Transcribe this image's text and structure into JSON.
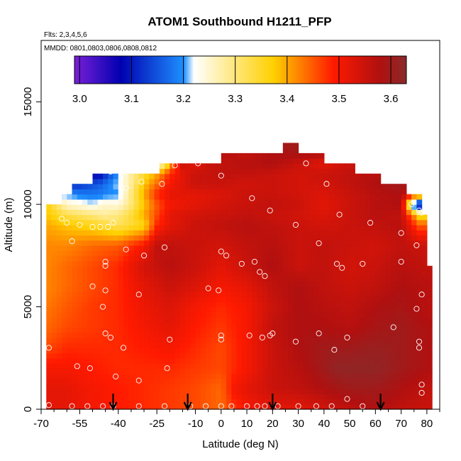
{
  "chart_data": {
    "type": "heatmap",
    "title": "ATOM1 Southbound H1211_PFP",
    "flights_label": "Flts: 2,3,4,5,6",
    "dates_label": "MMDD: 0801,0803,0806,0808,0812",
    "xlabel": "Latitude (deg N)",
    "ylabel": "Altitude (m)",
    "xlim": [
      -70,
      85
    ],
    "ylim": [
      0,
      18000
    ],
    "x_ticks": [
      -70,
      -55,
      -40,
      -25,
      -10,
      0,
      10,
      20,
      30,
      40,
      50,
      60,
      70,
      80
    ],
    "x_tick_labels": [
      "-70",
      "-55",
      "-40",
      "-25",
      "-10",
      "0",
      "10",
      "20",
      "30",
      "40",
      "50",
      "60",
      "70",
      "80"
    ],
    "x_minor_ticks": [
      -65,
      -60,
      -50,
      -45,
      -35,
      -30,
      -20,
      -15,
      -5,
      5,
      15,
      25,
      35,
      45,
      55,
      65,
      75,
      85
    ],
    "y_ticks": [
      0,
      5000,
      10000,
      15000
    ],
    "y_tick_labels": [
      "0",
      "5000",
      "10000",
      "15000"
    ],
    "colorbar": {
      "min": 2.99,
      "max": 3.63,
      "ticks": [
        3.0,
        3.1,
        3.2,
        3.3,
        3.4,
        3.5,
        3.6
      ],
      "tick_labels": [
        "3.0",
        "3.1",
        "3.2",
        "3.3",
        "3.4",
        "3.5",
        "3.6"
      ],
      "colors": [
        "#7a1fd8",
        "#0000b0",
        "#1e90ff",
        "#ffffff",
        "#ffd000",
        "#ff1a00",
        "#b01010",
        "#8a2a2a"
      ]
    },
    "arrows_lat": [
      -42,
      -13,
      20,
      62
    ],
    "field_rows": [
      {
        "alt": 13000,
        "lat": [
          26,
          27
        ],
        "v": [
          3.6,
          3.6
        ]
      },
      {
        "alt": 12500,
        "lat": [
          2,
          10,
          20,
          30,
          37
        ],
        "v": [
          3.57,
          3.56,
          3.58,
          3.59,
          3.58
        ]
      },
      {
        "alt": 12000,
        "lat": [
          -22,
          -20,
          -15,
          -10,
          -5,
          0,
          10,
          20,
          30,
          40,
          50
        ],
        "v": [
          3.26,
          3.4,
          3.55,
          3.52,
          3.55,
          3.56,
          3.57,
          3.58,
          3.55,
          3.52,
          3.55
        ]
      },
      {
        "alt": 11500,
        "lat": [
          -47,
          -40,
          -35,
          -25,
          -20,
          -15,
          -10,
          0,
          10,
          20,
          30,
          40,
          50,
          60
        ],
        "v": [
          3.08,
          3.2,
          3.28,
          3.4,
          3.48,
          3.52,
          3.55,
          3.56,
          3.56,
          3.55,
          3.54,
          3.55,
          3.56,
          3.57
        ]
      },
      {
        "alt": 11000,
        "lat": [
          -55,
          -47,
          -40,
          -35,
          -30,
          -20,
          -10,
          0,
          10,
          20,
          30,
          40,
          50,
          60,
          70
        ],
        "v": [
          3.12,
          3.16,
          3.22,
          3.28,
          3.38,
          3.5,
          3.55,
          3.55,
          3.54,
          3.55,
          3.54,
          3.54,
          3.56,
          3.58,
          3.6
        ]
      },
      {
        "alt": 10500,
        "lat": [
          -60,
          -50,
          -40,
          -35,
          -30,
          -25,
          -20,
          -10,
          0,
          10,
          20,
          30,
          40,
          50,
          60,
          70,
          75
        ],
        "v": [
          3.2,
          3.18,
          3.2,
          3.3,
          3.4,
          3.48,
          3.52,
          3.52,
          3.53,
          3.55,
          3.55,
          3.54,
          3.53,
          3.55,
          3.57,
          3.58,
          3.5
        ]
      },
      {
        "alt": 10000,
        "lat": [
          -67,
          -60,
          -50,
          -45,
          -40,
          -35,
          -30,
          -25,
          -20,
          -10,
          0,
          10,
          20,
          30,
          40,
          50,
          60,
          70,
          76
        ],
        "v": [
          3.36,
          3.25,
          3.22,
          3.25,
          3.24,
          3.3,
          3.38,
          3.45,
          3.5,
          3.52,
          3.54,
          3.55,
          3.56,
          3.55,
          3.52,
          3.55,
          3.57,
          3.58,
          3.05
        ]
      },
      {
        "alt": 9500,
        "lat": [
          -68,
          -60,
          -50,
          -45,
          -40,
          -35,
          -30,
          -25,
          -20,
          -10,
          0,
          10,
          20,
          30,
          40,
          50,
          60,
          70,
          77
        ],
        "v": [
          3.38,
          3.33,
          3.3,
          3.28,
          3.3,
          3.34,
          3.4,
          3.46,
          3.52,
          3.54,
          3.55,
          3.56,
          3.55,
          3.54,
          3.53,
          3.55,
          3.57,
          3.56,
          3.35
        ]
      },
      {
        "alt": 9000,
        "lat": [
          -68,
          -60,
          -50,
          -40,
          -30,
          -25,
          -20,
          -10,
          0,
          10,
          20,
          30,
          40,
          50,
          60,
          70,
          77
        ],
        "v": [
          3.4,
          3.38,
          3.36,
          3.32,
          3.36,
          3.48,
          3.52,
          3.55,
          3.56,
          3.57,
          3.56,
          3.55,
          3.54,
          3.55,
          3.56,
          3.57,
          3.45
        ]
      },
      {
        "alt": 8000,
        "lat": [
          -68,
          -60,
          -50,
          -40,
          -30,
          -25,
          -20,
          -10,
          0,
          10,
          20,
          30,
          40,
          50,
          60,
          70,
          78
        ],
        "v": [
          3.42,
          3.42,
          3.44,
          3.45,
          3.5,
          3.56,
          3.56,
          3.55,
          3.54,
          3.56,
          3.57,
          3.55,
          3.56,
          3.55,
          3.54,
          3.56,
          3.55
        ]
      },
      {
        "alt": 7000,
        "lat": [
          -68,
          -60,
          -50,
          -40,
          -30,
          -20,
          -10,
          0,
          10,
          20,
          30,
          40,
          50,
          60,
          70,
          79
        ],
        "v": [
          3.42,
          3.44,
          3.46,
          3.48,
          3.54,
          3.57,
          3.55,
          3.52,
          3.55,
          3.58,
          3.55,
          3.56,
          3.54,
          3.55,
          3.57,
          3.56
        ]
      },
      {
        "alt": 6000,
        "lat": [
          -68,
          -60,
          -50,
          -40,
          -30,
          -20,
          -10,
          0,
          10,
          20,
          30,
          40,
          50,
          60,
          70,
          80
        ],
        "v": [
          3.42,
          3.44,
          3.46,
          3.48,
          3.52,
          3.55,
          3.53,
          3.5,
          3.52,
          3.56,
          3.58,
          3.56,
          3.55,
          3.56,
          3.58,
          3.57
        ]
      },
      {
        "alt": 5000,
        "lat": [
          -68,
          -60,
          -50,
          -40,
          -30,
          -20,
          -10,
          0,
          10,
          20,
          30,
          40,
          50,
          60,
          70,
          80
        ],
        "v": [
          3.43,
          3.45,
          3.47,
          3.48,
          3.51,
          3.53,
          3.5,
          3.48,
          3.5,
          3.55,
          3.58,
          3.57,
          3.56,
          3.58,
          3.59,
          3.57
        ]
      },
      {
        "alt": 4000,
        "lat": [
          -68,
          -60,
          -50,
          -40,
          -30,
          -20,
          -10,
          0,
          10,
          20,
          30,
          40,
          50,
          60,
          70,
          80
        ],
        "v": [
          3.44,
          3.46,
          3.47,
          3.48,
          3.5,
          3.52,
          3.49,
          3.47,
          3.5,
          3.56,
          3.58,
          3.58,
          3.57,
          3.59,
          3.6,
          3.58
        ]
      },
      {
        "alt": 3000,
        "lat": [
          -68,
          -60,
          -50,
          -40,
          -30,
          -20,
          -10,
          0,
          10,
          20,
          30,
          40,
          50,
          60,
          70,
          80
        ],
        "v": [
          3.46,
          3.48,
          3.48,
          3.48,
          3.49,
          3.5,
          3.48,
          3.46,
          3.5,
          3.55,
          3.58,
          3.6,
          3.6,
          3.61,
          3.6,
          3.58
        ]
      },
      {
        "alt": 2000,
        "lat": [
          -68,
          -60,
          -50,
          -40,
          -30,
          -20,
          -10,
          0,
          10,
          20,
          30,
          40,
          45,
          50,
          60,
          70,
          80
        ],
        "v": [
          3.5,
          3.5,
          3.49,
          3.48,
          3.48,
          3.48,
          3.47,
          3.46,
          3.5,
          3.55,
          3.57,
          3.6,
          3.62,
          3.62,
          3.62,
          3.6,
          3.58
        ]
      },
      {
        "alt": 1000,
        "lat": [
          -68,
          -60,
          -50,
          -40,
          -30,
          -20,
          -10,
          0,
          5,
          10,
          20,
          30,
          40,
          50,
          60,
          70,
          80
        ],
        "v": [
          3.52,
          3.52,
          3.5,
          3.49,
          3.48,
          3.47,
          3.46,
          3.44,
          3.5,
          3.52,
          3.55,
          3.56,
          3.58,
          3.6,
          3.6,
          3.58,
          3.56
        ]
      },
      {
        "alt": 0,
        "lat": [
          -68,
          -60,
          -50,
          -40,
          -30,
          -20,
          -10,
          0,
          10,
          20,
          30,
          40,
          50,
          60,
          70,
          80
        ],
        "v": [
          3.52,
          3.52,
          3.5,
          3.49,
          3.48,
          3.47,
          3.46,
          3.44,
          3.5,
          3.52,
          3.52,
          3.54,
          3.56,
          3.58,
          3.56,
          3.55
        ]
      }
    ],
    "samples": [
      [
        -43,
        11600
      ],
      [
        -37,
        10800
      ],
      [
        -31,
        11100
      ],
      [
        -23,
        11000
      ],
      [
        -18,
        11900
      ],
      [
        -9,
        12000
      ],
      [
        0,
        11400
      ],
      [
        33,
        12000
      ],
      [
        41,
        11000
      ],
      [
        67,
        11300
      ],
      [
        74,
        10000
      ],
      [
        77,
        9700
      ],
      [
        78,
        9600
      ],
      [
        -66,
        10200
      ],
      [
        -62,
        9300
      ],
      [
        -60,
        9100
      ],
      [
        -55,
        9000
      ],
      [
        -50,
        8900
      ],
      [
        -47,
        8900
      ],
      [
        -44,
        8900
      ],
      [
        -42,
        9100
      ],
      [
        -58,
        8200
      ],
      [
        -37,
        7800
      ],
      [
        -30,
        7500
      ],
      [
        -22,
        7900
      ],
      [
        0,
        7700
      ],
      [
        2,
        7500
      ],
      [
        8,
        7100
      ],
      [
        13,
        7200
      ],
      [
        15,
        6700
      ],
      [
        17,
        6500
      ],
      [
        12,
        10300
      ],
      [
        19,
        9700
      ],
      [
        29,
        9000
      ],
      [
        38,
        8100
      ],
      [
        45,
        7100
      ],
      [
        47,
        6900
      ],
      [
        46,
        9500
      ],
      [
        58,
        9100
      ],
      [
        70,
        8600
      ],
      [
        76,
        8000
      ],
      [
        -45,
        7200
      ],
      [
        -45,
        7000
      ],
      [
        -50,
        6000
      ],
      [
        -45,
        5800
      ],
      [
        -46,
        5000
      ],
      [
        -32,
        5600
      ],
      [
        -5,
        5900
      ],
      [
        -1,
        5800
      ],
      [
        55,
        7100
      ],
      [
        70,
        7200
      ],
      [
        78,
        5600
      ],
      [
        76,
        4900
      ],
      [
        -45,
        3700
      ],
      [
        -43,
        3500
      ],
      [
        -38,
        3000
      ],
      [
        -20,
        3400
      ],
      [
        0,
        3600
      ],
      [
        0,
        3400
      ],
      [
        11,
        3600
      ],
      [
        16,
        3500
      ],
      [
        19,
        3600
      ],
      [
        20,
        3700
      ],
      [
        29,
        3300
      ],
      [
        38,
        3700
      ],
      [
        44,
        2900
      ],
      [
        49,
        3500
      ],
      [
        67,
        4000
      ],
      [
        77,
        3300
      ],
      [
        77,
        3000
      ],
      [
        78,
        1200
      ],
      [
        78,
        800
      ],
      [
        -67,
        3000
      ],
      [
        -56,
        2100
      ],
      [
        -51,
        2000
      ],
      [
        -41,
        1600
      ],
      [
        -32,
        1400
      ],
      [
        -21,
        2000
      ],
      [
        -67,
        200
      ],
      [
        -58,
        150
      ],
      [
        -52,
        150
      ],
      [
        -46,
        150
      ],
      [
        -42,
        150
      ],
      [
        -32,
        150
      ],
      [
        -22,
        150
      ],
      [
        -12,
        150
      ],
      [
        -6,
        150
      ],
      [
        0,
        150
      ],
      [
        4,
        150
      ],
      [
        10,
        150
      ],
      [
        14,
        150
      ],
      [
        17,
        150
      ],
      [
        22,
        150
      ],
      [
        30,
        150
      ],
      [
        37,
        150
      ],
      [
        43,
        150
      ],
      [
        49,
        500
      ],
      [
        55,
        150
      ]
    ]
  }
}
